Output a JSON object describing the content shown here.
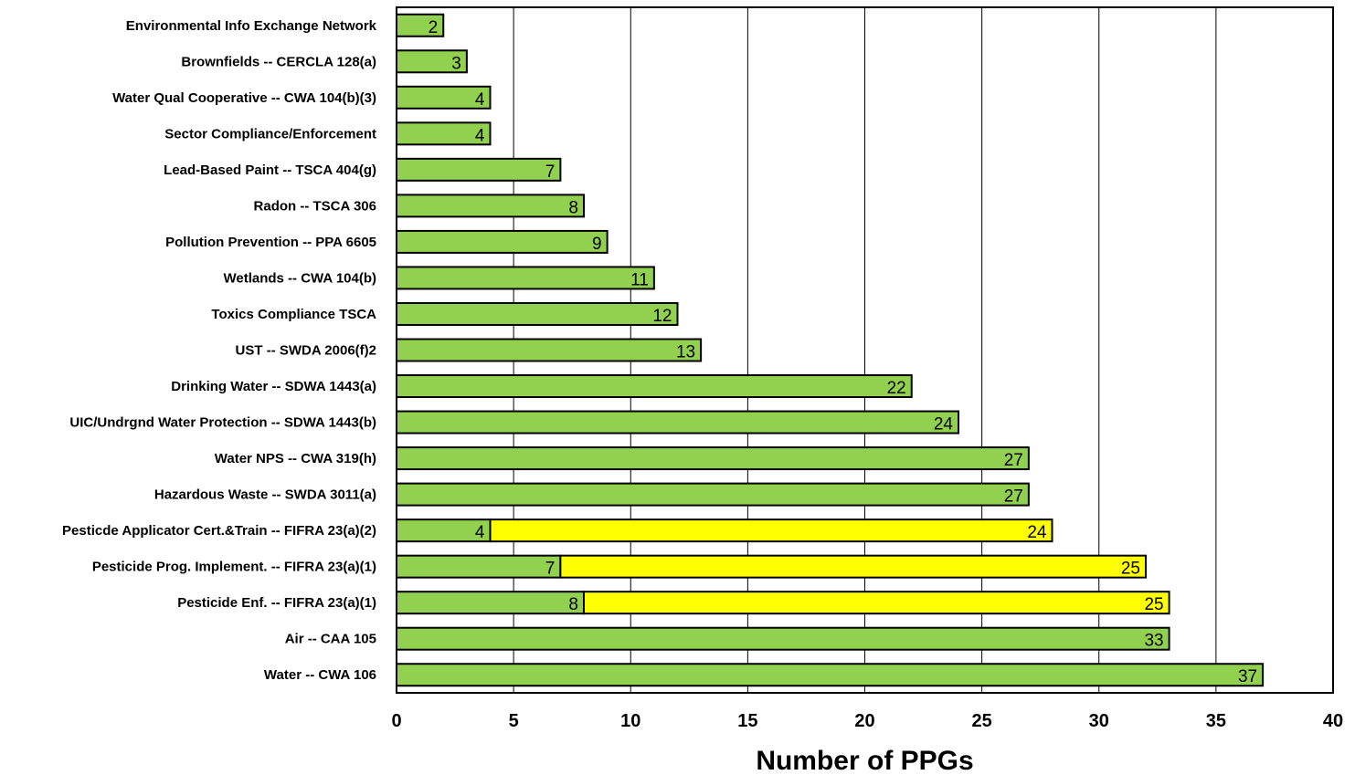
{
  "chart_data": {
    "type": "bar",
    "orientation": "horizontal",
    "stacked": true,
    "xlabel": "Number of PPGs",
    "xlim": [
      0,
      40
    ],
    "xticks": [
      "0",
      "5",
      "10",
      "15",
      "20",
      "25",
      "30",
      "35",
      "40"
    ],
    "grid": "vertical",
    "categories": [
      "Environmental Info Exchange Network",
      "Brownfields -- CERCLA 128(a)",
      "Water Qual Cooperative -- CWA 104(b)(3)",
      "Sector Compliance/Enforcement",
      "Lead-Based Paint -- TSCA 404(g)",
      "Radon -- TSCA 306",
      "Pollution Prevention -- PPA 6605",
      "Wetlands -- CWA 104(b)",
      "Toxics Compliance TSCA",
      "UST  -- SWDA 2006(f)2",
      "Drinking Water -- SDWA 1443(a)",
      "UIC/Undrgnd Water Protection -- SDWA 1443(b)",
      "Water NPS  -- CWA 319(h)",
      "Hazardous Waste -- SWDA 3011(a)",
      "Pesticde Applicator Cert.&Train -- FIFRA 23(a)(2)",
      "Pesticide Prog. Implement. -- FIFRA 23(a)(1)",
      "Pesticide Enf. -- FIFRA 23(a)(1)",
      "Air -- CAA 105",
      "Water -- CWA 106"
    ],
    "series": [
      {
        "color": "#92D050",
        "values": [
          2,
          3,
          4,
          4,
          7,
          8,
          9,
          11,
          12,
          13,
          22,
          24,
          27,
          27,
          4,
          7,
          8,
          33,
          37
        ]
      },
      {
        "color": "#FFFF00",
        "values": [
          0,
          0,
          0,
          0,
          0,
          0,
          0,
          0,
          0,
          0,
          0,
          0,
          0,
          0,
          24,
          25,
          25,
          0,
          0
        ]
      }
    ],
    "colors": {
      "grid": "#000000",
      "bar_edge": "#000000"
    }
  }
}
